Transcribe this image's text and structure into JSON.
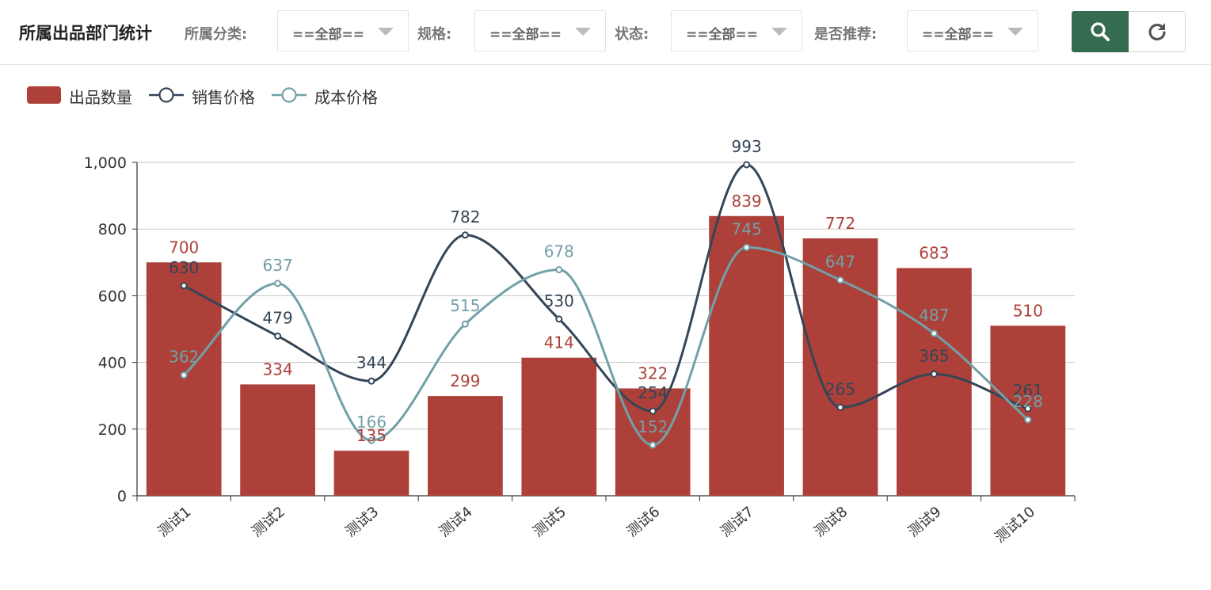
{
  "toolbar": {
    "title": "所属出品部门统计",
    "filters": [
      {
        "label": "所属分类:",
        "value": "==全部=="
      },
      {
        "label": "规格:",
        "value": "==全部=="
      },
      {
        "label": "状态:",
        "value": "==全部=="
      },
      {
        "label": "是否推荐:",
        "value": "==全部=="
      }
    ],
    "search_icon": "search-icon",
    "refresh_icon": "refresh-icon",
    "accent_color": "#356b4f"
  },
  "chart_data": {
    "type": "bar",
    "categories": [
      "测试1",
      "测试2",
      "测试3",
      "测试4",
      "测试5",
      "测试6",
      "测试7",
      "测试8",
      "测试9",
      "测试10"
    ],
    "ylim": [
      0,
      1000
    ],
    "yticks": [
      0,
      200,
      400,
      600,
      800,
      1000
    ],
    "ytick_labels": [
      "0",
      "200",
      "400",
      "600",
      "800",
      "1,000"
    ],
    "grid": true,
    "legend_position": "top-left",
    "series": [
      {
        "name": "出品数量",
        "type": "bar",
        "color": "#ad413a",
        "values": [
          700,
          334,
          135,
          299,
          414,
          322,
          839,
          772,
          683,
          510
        ]
      },
      {
        "name": "销售价格",
        "type": "line",
        "smooth": true,
        "color": "#344556",
        "values": [
          630,
          479,
          344,
          782,
          530,
          254,
          993,
          265,
          365,
          261
        ]
      },
      {
        "name": "成本价格",
        "type": "line",
        "smooth": true,
        "color": "#72a0a7",
        "values": [
          362,
          637,
          166,
          515,
          678,
          152,
          745,
          647,
          487,
          228
        ]
      }
    ]
  }
}
